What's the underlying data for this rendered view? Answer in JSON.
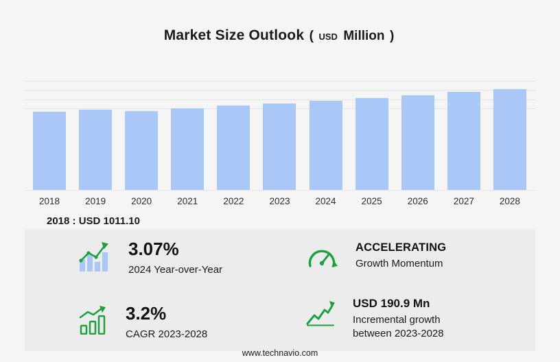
{
  "title": {
    "main": "Market Size Outlook",
    "open_paren": "(",
    "currency": "USD",
    "unit": "Million",
    "close_paren": ")"
  },
  "chart_data": {
    "type": "bar",
    "title": "Market Size Outlook (USD Million)",
    "xlabel": "",
    "ylabel": "USD Million",
    "categories": [
      "2018",
      "2019",
      "2020",
      "2021",
      "2022",
      "2023",
      "2024",
      "2025",
      "2026",
      "2027",
      "2028"
    ],
    "values": [
      1011.1,
      1043,
      1024,
      1059,
      1088,
      1118.3,
      1152.6,
      1188.5,
      1226.5,
      1265.8,
      1309.2
    ],
    "ylim": [
      0,
      1500
    ],
    "grid": "faint horizontal gridlines at top of plot",
    "legend": "none",
    "bar_color": "#a9c8f8"
  },
  "note": {
    "base_year": "2018 : USD  1011.10"
  },
  "stats": [
    {
      "icon": "yoy-trend-bar-chart-icon",
      "value": "3.07%",
      "label": "2024 Year-over-Year"
    },
    {
      "icon": "speedometer-icon",
      "value": "ACCELERATING",
      "label": "Growth Momentum"
    },
    {
      "icon": "cagr-growth-bars-icon",
      "value": "3.2%",
      "label": "CAGR 2023-2028"
    },
    {
      "icon": "incremental-growth-line-icon",
      "value": "USD 190.9 Mn",
      "label": "Incremental growth between 2023-2028"
    }
  ],
  "footer": {
    "website": "www.technavio.com"
  },
  "colors": {
    "background": "#f5f5f5",
    "panel": "#ececec",
    "bar": "#a9c8f8",
    "accent_green": "#1aa23c",
    "gridline": "#e2e2e2",
    "text": "#1a1a1a"
  }
}
